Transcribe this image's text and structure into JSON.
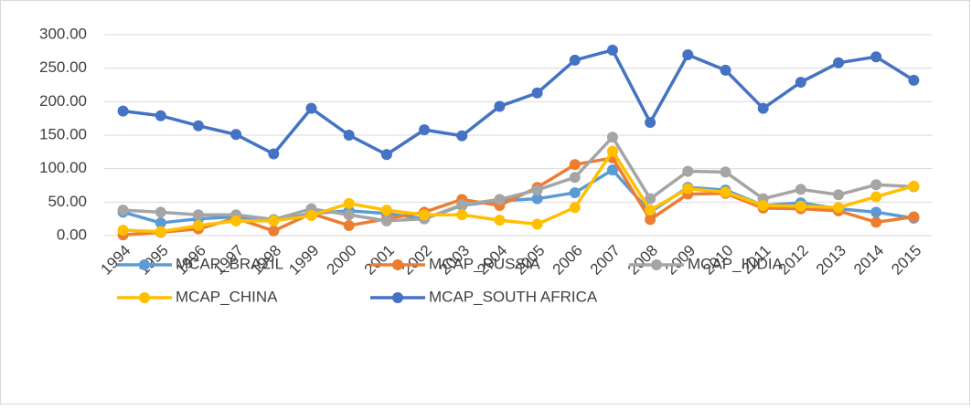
{
  "chart_data": {
    "type": "line",
    "categories": [
      "1994",
      "1995",
      "1996",
      "1997",
      "1998",
      "1999",
      "2000",
      "2001",
      "2002",
      "2003",
      "2004",
      "2005",
      "2006",
      "2007",
      "2008",
      "2009",
      "2010",
      "2011",
      "2012",
      "2013",
      "2014",
      "2015"
    ],
    "series": [
      {
        "name": "MCAP_BRAZIL",
        "color": "#5B9BD5",
        "values": [
          35,
          19,
          25,
          28,
          22,
          33,
          37,
          33,
          25,
          45,
          52,
          55,
          64,
          98,
          35,
          72,
          68,
          45,
          49,
          40,
          35,
          26
        ]
      },
      {
        "name": "MCAP_RUSSIA",
        "color": "#ED7D31",
        "values": [
          1,
          5,
          10,
          26,
          7,
          33,
          15,
          25,
          35,
          54,
          45,
          72,
          106,
          116,
          24,
          62,
          63,
          41,
          40,
          37,
          20,
          28
        ]
      },
      {
        "name": "MCAP_INDIA",
        "color": "#A5A5A5",
        "values": [
          38,
          35,
          31,
          31,
          24,
          40,
          31,
          22,
          25,
          46,
          54,
          68,
          87,
          147,
          55,
          96,
          95,
          55,
          69,
          61,
          76,
          73
        ]
      },
      {
        "name": "MCAP_CHINA",
        "color": "#FFC000",
        "values": [
          8,
          6,
          15,
          22,
          22,
          30,
          48,
          38,
          31,
          31,
          23,
          17,
          42,
          126,
          38,
          70,
          65,
          45,
          44,
          42,
          58,
          74
        ]
      },
      {
        "name": "MCAP_SOUTH AFRICA",
        "color": "#4472C4",
        "values": [
          186,
          179,
          164,
          151,
          122,
          190,
          150,
          121,
          158,
          149,
          193,
          213,
          262,
          277,
          169,
          270,
          247,
          190,
          229,
          258,
          267,
          232
        ]
      }
    ],
    "ylim": [
      0,
      300
    ],
    "yticks": [
      {
        "value": 0,
        "label": "0.00"
      },
      {
        "value": 50,
        "label": "50.00"
      },
      {
        "value": 100,
        "label": "100.00"
      },
      {
        "value": 150,
        "label": "150.00"
      },
      {
        "value": 200,
        "label": "200.00"
      },
      {
        "value": 250,
        "label": "250.00"
      },
      {
        "value": 300,
        "label": "300.00"
      }
    ],
    "grid": true,
    "legend": "bottom"
  }
}
